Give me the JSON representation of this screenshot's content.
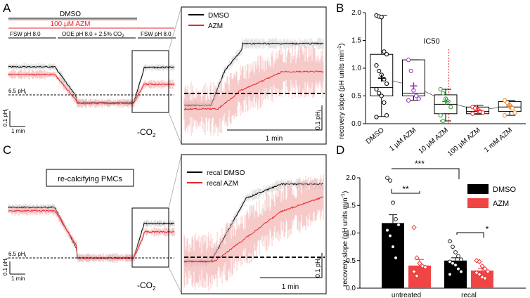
{
  "panels": {
    "A": {
      "letter": "A",
      "dmso_bar_label": "DMSO",
      "azm_bar_label": "100 µM AZM",
      "condition_1": "FSW pH 8.0",
      "condition_2": "OOE pH 8.0 + 2.5% CO",
      "condition_2_sub": "2",
      "condition_3": "FSW pH 8.0",
      "ph_ref": "6.5 pH",
      "ph_ref_sub": "i",
      "scale_y": "0.1 pH",
      "scale_y_sub": "i",
      "scale_x": "1 min",
      "co2_label": "-CO",
      "co2_sub": "2",
      "zoom_legend": [
        "DMSO",
        "AZM"
      ],
      "zoom_scale_x": "1 min",
      "zoom_scale_y": "0.1 pH",
      "zoom_scale_y_sub": "i"
    },
    "C": {
      "letter": "C",
      "box_label": "re-calcifying PMCs",
      "ph_ref": "6.5 pH",
      "ph_ref_sub": "i",
      "scale_y": "0.1 pH",
      "scale_y_sub": "i",
      "scale_x": "1 min",
      "co2_label": "-CO",
      "co2_sub": "2",
      "zoom_legend": [
        "recal DMSO",
        "recal AZM"
      ],
      "zoom_scale_x": "1 min",
      "zoom_scale_y": "0.1 pH",
      "zoom_scale_y_sub": "i"
    },
    "B": {
      "letter": "B",
      "ic50_label": "IC50"
    },
    "D": {
      "letter": "D",
      "sig": [
        "**",
        "***",
        "*"
      ]
    }
  },
  "colors": {
    "dmso": "#000000",
    "azm": "#e8262c",
    "azm_light": "#f2a7a7",
    "purple": "#9b2fbf",
    "green": "#2ca02c",
    "orange": "#e8862c"
  },
  "chart_data": [
    {
      "type": "box",
      "panel": "B",
      "ylabel": "recovery slope (pH units min",
      "ylabel_sup": "-1",
      "ylabel_sub": "i",
      "ylim": [
        0,
        2.0
      ],
      "yticks": [
        "0.0",
        "0.5",
        "1.0",
        "1.5",
        "2.0"
      ],
      "categories": [
        "DMSO",
        "1 µM AZM",
        "10 µM AZM",
        "100 µM AZM",
        "1 mM AZM"
      ],
      "boxes": [
        {
          "q1": 0.5,
          "median": 0.65,
          "q3": 1.25,
          "min": 0.13,
          "max": 1.95,
          "mean": 0.82
        },
        {
          "q1": 0.5,
          "median": 0.55,
          "q3": 1.15,
          "min": 0.42,
          "max": 1.15,
          "mean": 0.68
        },
        {
          "q1": 0.18,
          "median": 0.35,
          "q3": 0.52,
          "min": 0.05,
          "max": 0.62,
          "mean": 0.4
        },
        {
          "q1": 0.18,
          "median": 0.22,
          "q3": 0.3,
          "min": 0.17,
          "max": 0.33,
          "mean": 0.24
        },
        {
          "q1": 0.22,
          "median": 0.3,
          "q3": 0.4,
          "min": 0.15,
          "max": 0.42,
          "mean": 0.32
        }
      ],
      "points": [
        [
          1.95,
          1.93,
          1.92,
          1.3,
          1.25,
          1.05,
          0.95,
          0.88,
          0.8,
          0.72,
          0.62,
          0.55,
          0.5,
          0.38,
          0.15,
          0.12
        ],
        [
          1.15,
          0.95,
          0.6,
          0.5,
          0.45,
          0.42
        ],
        [
          0.62,
          0.55,
          0.45,
          0.4,
          0.3,
          0.15,
          0.05
        ],
        [
          0.3,
          0.28,
          0.25,
          0.22,
          0.2,
          0.18
        ],
        [
          0.42,
          0.38,
          0.33,
          0.28,
          0.2,
          0.15
        ]
      ],
      "ic50_position": 2.6
    },
    {
      "type": "bar",
      "panel": "D",
      "ylabel": "recovery slope (pH units min",
      "ylabel_sup": "-1",
      "ylabel_sub": "i",
      "ylim": [
        0,
        2.0
      ],
      "yticks": [
        "0.0",
        "0.5",
        "1.0",
        "1.5",
        "2.0"
      ],
      "categories": [
        "untreated",
        "recal"
      ],
      "series": [
        {
          "name": "DMSO",
          "values": [
            1.18,
            0.5
          ],
          "sem": [
            0.15,
            0.05
          ],
          "points": [
            [
              2.0,
              1.95,
              1.55,
              1.25,
              1.15,
              1.05,
              0.95,
              0.75,
              0.55
            ],
            [
              0.85,
              0.75,
              0.65,
              0.58,
              0.52,
              0.48,
              0.45,
              0.42,
              0.35,
              0.3,
              0.25
            ]
          ]
        },
        {
          "name": "AZM",
          "values": [
            0.41,
            0.32
          ],
          "sem": [
            0.11,
            0.04
          ],
          "points": [
            [
              1.1,
              0.55,
              0.45,
              0.4,
              0.38,
              0.3,
              0.22
            ],
            [
              0.5,
              0.48,
              0.4,
              0.35,
              0.3,
              0.28,
              0.25,
              0.2,
              0.18
            ]
          ]
        }
      ]
    }
  ]
}
